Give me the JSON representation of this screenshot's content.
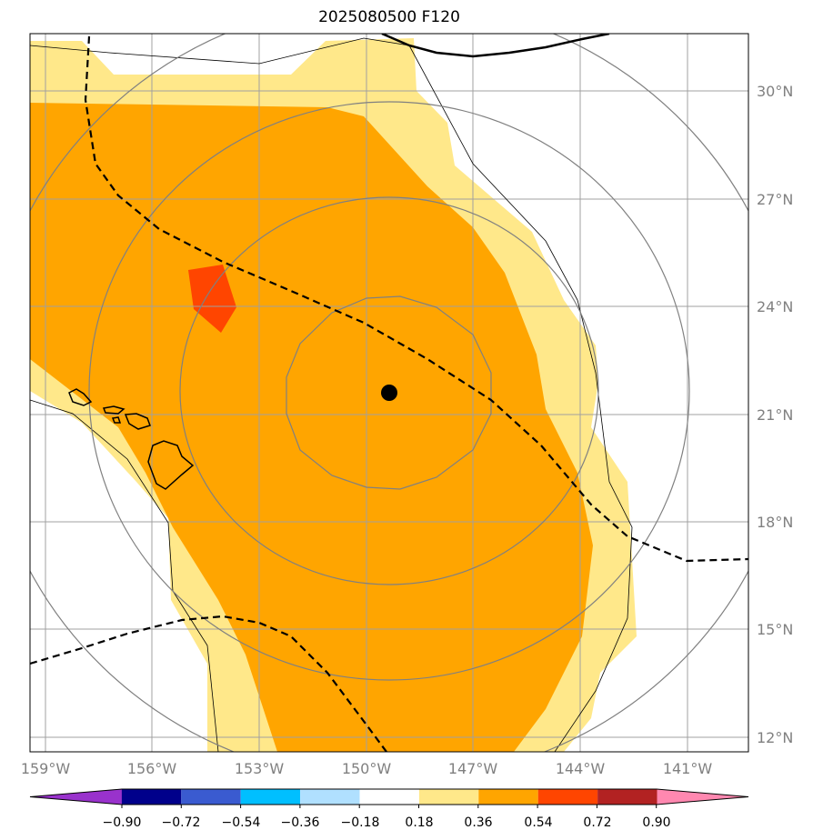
{
  "title": "2025080500 F120",
  "map": {
    "lon_labels": [
      "159°W",
      "156°W",
      "153°W",
      "150°W",
      "147°W",
      "144°W",
      "141°W"
    ],
    "lat_labels": [
      "30°N",
      "27°N",
      "24°N",
      "21°N",
      "18°N",
      "15°N",
      "12°N"
    ],
    "storm_center": {
      "lon": -149.3,
      "lat": 21.6
    }
  },
  "colorbar": {
    "labels": [
      "−0.90",
      "−0.72",
      "−0.54",
      "−0.36",
      "−0.18",
      "0.18",
      "0.36",
      "0.54",
      "0.72",
      "0.90"
    ],
    "colors": [
      "#9932cc",
      "#00008b",
      "#3a5bd0",
      "#00bfff",
      "#b0e0ff",
      "#ffffff",
      "#ffe88a",
      "#ffa500",
      "#ff4500",
      "#b22222",
      "#ff88b0"
    ]
  },
  "legend_fill_colors": {
    "light": "#ffe88a",
    "medium": "#ffa500",
    "high": "#ff4500"
  }
}
